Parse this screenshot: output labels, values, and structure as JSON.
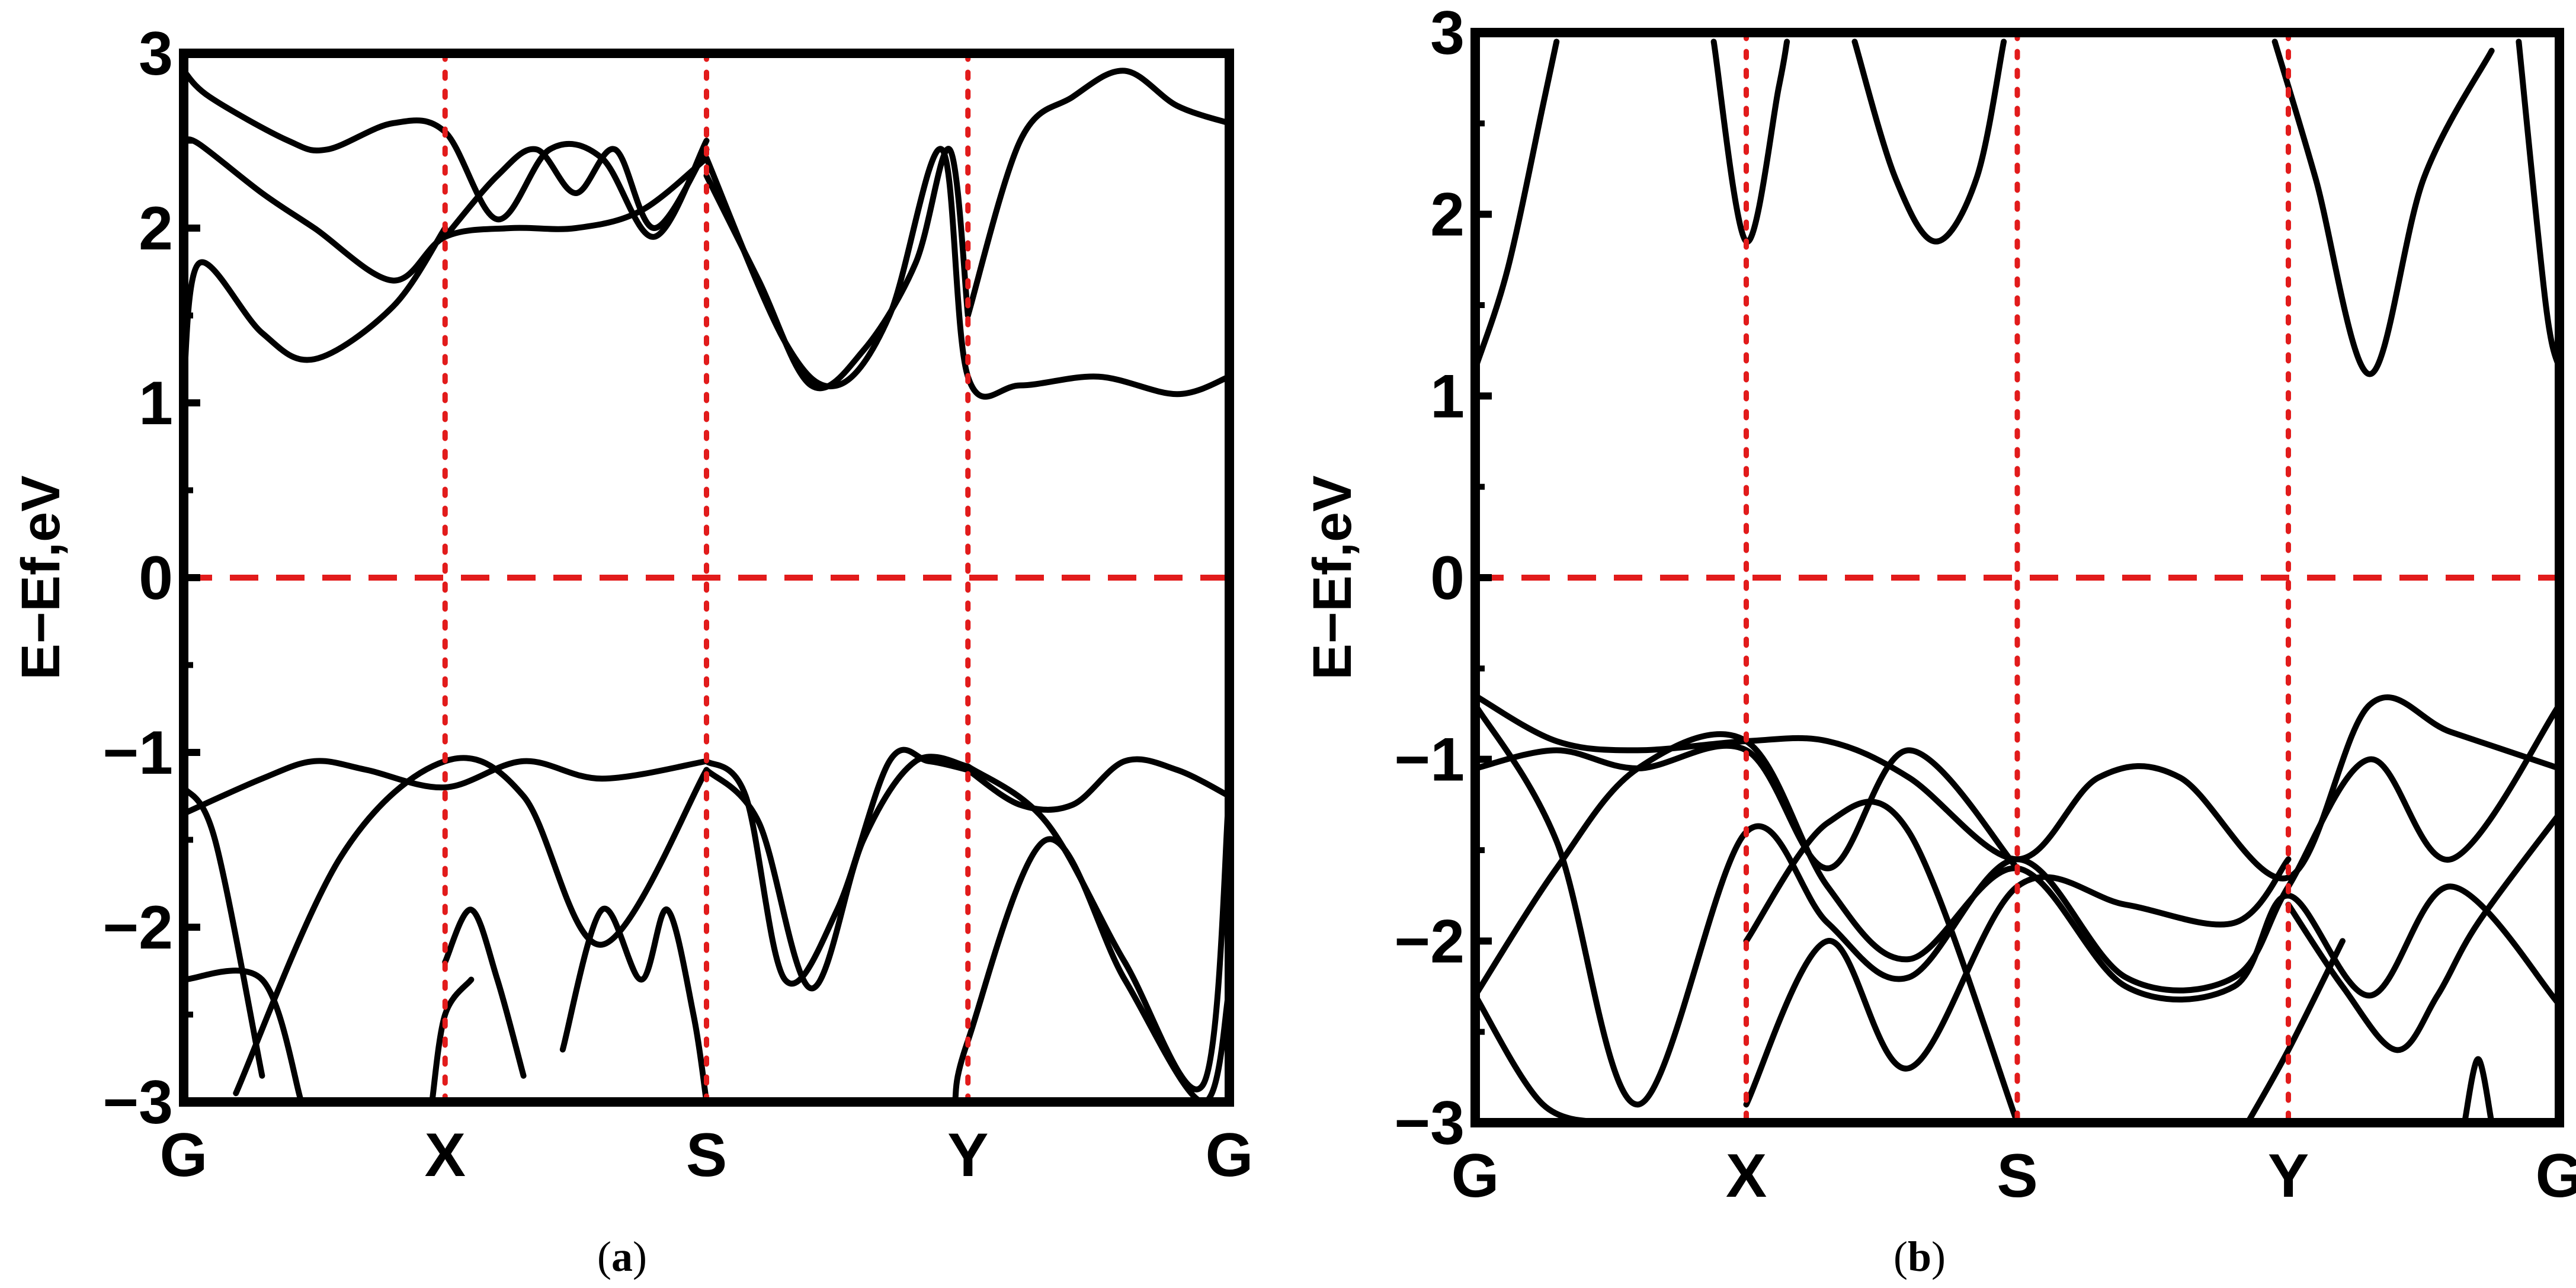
{
  "chart_data": [
    {
      "type": "line",
      "panel_label": "a",
      "ylabel": "E−Ef,eV",
      "ylim": [
        -3,
        3
      ],
      "y_ticks": [
        "3",
        "2",
        "1",
        "0",
        "−1",
        "−2",
        "−3"
      ],
      "y_tick_values": [
        3,
        2,
        1,
        0,
        -1,
        -2,
        -3
      ],
      "x_ticks": [
        "G",
        "X",
        "S",
        "Y",
        "G"
      ],
      "x_tick_positions": [
        0,
        1,
        2,
        3,
        4
      ],
      "xlim": [
        0,
        4
      ],
      "fermi_level": 0,
      "grid": false,
      "series": [
        {
          "x": [
            0,
            0.06,
            0.3,
            0.5,
            0.8,
            1.0,
            1.25,
            1.5,
            1.75,
            2.0
          ],
          "y": [
            2.5,
            2.48,
            2.2,
            2.0,
            1.7,
            1.95,
            2.0,
            2.0,
            2.1,
            2.4
          ]
        },
        {
          "x": [
            0,
            0.06,
            0.3,
            0.5,
            0.8,
            1.0
          ],
          "y": [
            1.1,
            1.8,
            1.4,
            1.25,
            1.55,
            2.0
          ]
        },
        {
          "x": [
            0,
            0.1,
            0.4,
            0.55,
            0.8,
            1.0,
            1.2,
            1.4,
            1.6,
            1.8,
            2.0
          ],
          "y": [
            2.9,
            2.75,
            2.5,
            2.45,
            2.6,
            2.55,
            2.05,
            2.45,
            2.4,
            1.95,
            2.5
          ]
        },
        {
          "x": [
            1.0,
            1.2,
            1.35,
            1.5,
            1.65,
            1.8,
            2.0
          ],
          "y": [
            1.95,
            2.3,
            2.45,
            2.2,
            2.45,
            2.0,
            2.45
          ]
        },
        {
          "x": [
            2.0,
            2.3,
            2.5,
            2.7,
            2.9,
            3.0,
            3.2,
            3.5,
            3.8,
            4.0
          ],
          "y": [
            2.4,
            1.35,
            1.1,
            1.5,
            2.45,
            1.15,
            1.1,
            1.15,
            1.05,
            1.15
          ]
        },
        {
          "x": [
            2.0,
            2.2,
            2.4,
            2.6,
            2.8,
            2.93,
            3.0
          ],
          "y": [
            2.3,
            1.7,
            1.1,
            1.3,
            1.8,
            2.45,
            1.5
          ]
        },
        {
          "x": [
            3.0,
            3.2,
            3.4,
            3.6,
            3.8,
            4.0
          ],
          "y": [
            1.5,
            2.5,
            2.75,
            2.9,
            2.7,
            2.6
          ]
        },
        {
          "x": [
            0,
            0.3,
            0.5,
            0.7,
            1.0,
            1.3,
            1.6,
            2.0
          ],
          "y": [
            -1.35,
            -1.15,
            -1.05,
            -1.1,
            -1.2,
            -1.05,
            -1.15,
            -1.05
          ]
        },
        {
          "x": [
            0,
            0.12,
            0.3
          ],
          "y": [
            -1.2,
            -1.5,
            -2.85
          ]
        },
        {
          "x": [
            0.2,
            0.6,
            1.0,
            1.3,
            1.6,
            2.0
          ],
          "y": [
            -2.95,
            -1.6,
            -1.05,
            -1.25,
            -2.1,
            -1.1
          ]
        },
        {
          "x": [
            0,
            0.3,
            0.45
          ],
          "y": [
            -2.3,
            -2.3,
            -3.0
          ]
        },
        {
          "x": [
            1.0,
            1.1,
            1.2,
            1.3
          ],
          "y": [
            -2.2,
            -1.9,
            -2.3,
            -2.85
          ]
        },
        {
          "x": [
            0.95,
            1.0,
            1.1
          ],
          "y": [
            -3.0,
            -2.5,
            -2.3
          ]
        },
        {
          "x": [
            1.45,
            1.6,
            1.75,
            1.85,
            1.95,
            2.0
          ],
          "y": [
            -2.7,
            -1.9,
            -2.3,
            -1.9,
            -2.5,
            -3.0
          ]
        },
        {
          "x": [
            2.0,
            2.15,
            2.3,
            2.5,
            2.7,
            2.85,
            3.0
          ],
          "y": [
            -1.05,
            -1.25,
            -2.3,
            -1.9,
            -1.05,
            -1.05,
            -1.1
          ]
        },
        {
          "x": [
            2.0,
            2.2,
            2.4,
            2.6,
            2.8,
            3.0
          ],
          "y": [
            -1.1,
            -1.4,
            -2.35,
            -1.5,
            -1.05,
            -1.08
          ]
        },
        {
          "x": [
            3.0,
            3.2,
            3.4,
            3.6,
            3.8,
            4.0
          ],
          "y": [
            -1.1,
            -1.3,
            -1.3,
            -1.05,
            -1.1,
            -1.25
          ]
        },
        {
          "x": [
            3.0,
            3.3,
            3.6,
            3.9,
            4.0
          ],
          "y": [
            -1.08,
            -1.4,
            -2.2,
            -2.9,
            -1.2
          ]
        },
        {
          "x": [
            2.95,
            3.0,
            3.3,
            3.6,
            3.9,
            4.0
          ],
          "y": [
            -3.0,
            -2.65,
            -1.5,
            -2.3,
            -3.0,
            -2.35
          ]
        }
      ]
    },
    {
      "type": "line",
      "panel_label": "b",
      "ylabel": "E−Ef,eV",
      "ylim": [
        -3,
        3
      ],
      "y_ticks": [
        "3",
        "2",
        "1",
        "0",
        "−1",
        "−2",
        "−3"
      ],
      "y_tick_values": [
        3,
        2,
        1,
        0,
        -1,
        -2,
        -3
      ],
      "x_ticks": [
        "G",
        "X",
        "S",
        "Y",
        "G"
      ],
      "x_tick_positions": [
        0,
        1,
        2,
        3,
        4
      ],
      "xlim": [
        0,
        4
      ],
      "fermi_level": 0,
      "grid": false,
      "series": [
        {
          "x": [
            0,
            0.12,
            0.25,
            0.3
          ],
          "y": [
            1.15,
            1.7,
            2.6,
            2.95
          ]
        },
        {
          "x": [
            0.88,
            1.0,
            1.12,
            1.15
          ],
          "y": [
            2.95,
            1.85,
            2.7,
            2.95
          ]
        },
        {
          "x": [
            1.4,
            1.55,
            1.7,
            1.85,
            1.95
          ],
          "y": [
            2.95,
            2.2,
            1.85,
            2.2,
            2.95
          ]
        },
        {
          "x": [
            2.95,
            3.1,
            3.3,
            3.5,
            3.75
          ],
          "y": [
            2.95,
            2.2,
            1.12,
            2.2,
            2.9
          ]
        },
        {
          "x": [
            3.85,
            3.95,
            4.0
          ],
          "y": [
            2.95,
            1.5,
            1.15
          ]
        },
        {
          "x": [
            0,
            0.3,
            0.6,
            1.0,
            1.3,
            1.6,
            2.0,
            2.3,
            2.6,
            3.0,
            3.3,
            3.6,
            4.0
          ],
          "y": [
            -0.65,
            -0.9,
            -0.95,
            -0.9,
            -0.9,
            -1.1,
            -1.55,
            -1.1,
            -1.1,
            -1.65,
            -0.7,
            -0.85,
            -1.05
          ]
        },
        {
          "x": [
            0,
            0.3,
            0.6,
            1.0,
            1.3,
            1.6,
            2.0
          ],
          "y": [
            -1.05,
            -0.95,
            -1.05,
            -0.95,
            -1.6,
            -0.95,
            -1.6
          ]
        },
        {
          "x": [
            0,
            0.3,
            0.6,
            1.0,
            1.3,
            1.6,
            2.0,
            2.4,
            2.8,
            3.0,
            3.3,
            3.6,
            4.0
          ],
          "y": [
            -0.7,
            -1.45,
            -2.9,
            -1.4,
            -1.9,
            -2.2,
            -1.55,
            -2.2,
            -2.2,
            -1.7,
            -1.0,
            -1.55,
            -0.7
          ]
        },
        {
          "x": [
            0,
            0.3,
            0.6,
            1.0,
            1.3,
            1.6,
            2.0,
            2.4,
            2.8,
            3.0,
            3.3,
            3.6,
            4.0
          ],
          "y": [
            -2.3,
            -1.6,
            -1.05,
            -0.9,
            -1.7,
            -2.1,
            -1.6,
            -2.25,
            -2.25,
            -1.75,
            -2.3,
            -1.7,
            -2.35
          ]
        },
        {
          "x": [
            0,
            0.25,
            0.5
          ],
          "y": [
            -2.3,
            -2.9,
            -3.0
          ]
        },
        {
          "x": [
            1.0,
            1.3,
            1.6,
            2.0,
            2.4,
            2.8,
            3.0
          ],
          "y": [
            -2.9,
            -2.0,
            -2.7,
            -1.7,
            -1.8,
            -1.9,
            -1.55
          ]
        },
        {
          "x": [
            1.0,
            1.3,
            1.6,
            2.0
          ],
          "y": [
            -2.0,
            -1.35,
            -1.4,
            -3.0
          ]
        },
        {
          "x": [
            3.0,
            3.2,
            3.4,
            3.55,
            3.7,
            4.0
          ],
          "y": [
            -1.8,
            -2.25,
            -2.6,
            -2.3,
            -1.9,
            -1.3
          ]
        },
        {
          "x": [
            2.85,
            3.0,
            3.2
          ],
          "y": [
            -3.0,
            -2.6,
            -2.0
          ]
        },
        {
          "x": [
            3.65,
            3.7,
            3.75
          ],
          "y": [
            -3.0,
            -2.65,
            -3.0
          ]
        }
      ]
    }
  ],
  "captions": [
    "(a)",
    "(b)"
  ],
  "colors": {
    "band": "#000000",
    "reference_line": "#e21b1b",
    "frame": "#000000"
  }
}
